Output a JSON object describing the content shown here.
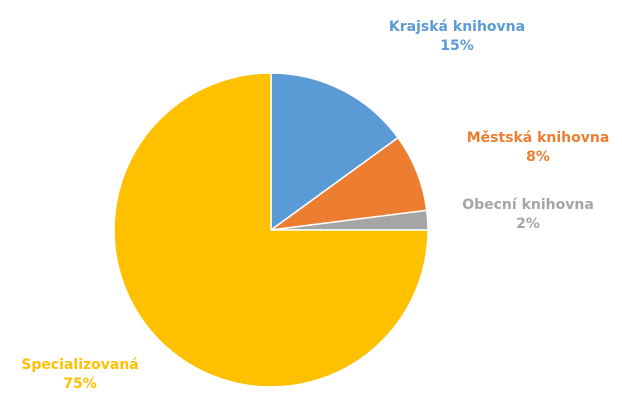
{
  "chart_data": {
    "type": "pie",
    "title": "",
    "slices": [
      {
        "label": "Krajská knihovna",
        "value": 15,
        "value_label": "15%",
        "color": "#5b9bd5"
      },
      {
        "label": "Městská knihovna",
        "value": 8,
        "value_label": "8%",
        "color": "#ed7d31"
      },
      {
        "label": "Obecní knihovna",
        "value": 2,
        "value_label": "2%",
        "color": "#a5a5a5"
      },
      {
        "label": "Specializovaná",
        "value": 75,
        "value_label": "75%",
        "color": "#ffc000"
      }
    ],
    "start_angle": "12 o'clock",
    "direction": "clockwise",
    "legend": "none",
    "labels": "outside, category name and percentage"
  }
}
